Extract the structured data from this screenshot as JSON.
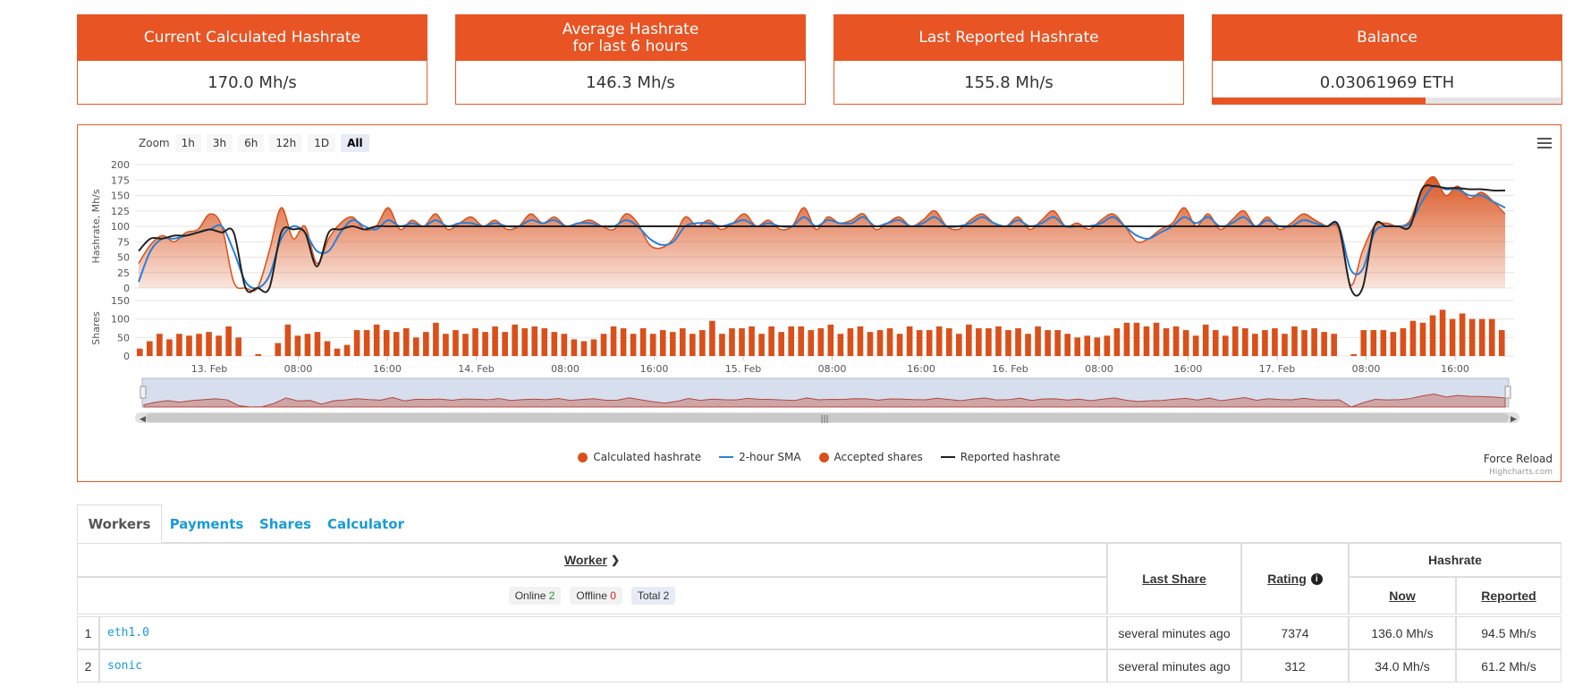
{
  "cards": [
    {
      "title": "Current Calculated Hashrate",
      "value": "170.0 Mh/s"
    },
    {
      "title": "Average Hashrate\nfor last 6 hours",
      "title_line1": "Average Hashrate",
      "title_line2": "for last 6 hours",
      "value": "146.3 Mh/s"
    },
    {
      "title": "Last Reported Hashrate",
      "value": "155.8 Mh/s"
    },
    {
      "title": "Balance",
      "value": "0.03061969 ETH",
      "progress_fraction": 0.61
    }
  ],
  "chart": {
    "zoom_label": "Zoom",
    "zoom_buttons": [
      "1h",
      "3h",
      "6h",
      "12h",
      "1D",
      "All"
    ],
    "zoom_active": "All",
    "legend": [
      "Calculated hashrate",
      "2-hour SMA",
      "Accepted shares",
      "Reported hashrate"
    ],
    "force_reload": "Force Reload",
    "credit": "Highcharts.com",
    "colors": {
      "calculated": "#d9501a",
      "sma": "#2b7fd6",
      "shares": "#d9501a",
      "reported": "#222222"
    }
  },
  "chart_data": {
    "type": "line",
    "panes": [
      {
        "ylabel": "Hashrate, Mh/s",
        "ylim": [
          0,
          200
        ],
        "yticks": [
          0,
          25,
          50,
          75,
          100,
          125,
          150,
          175,
          200
        ]
      },
      {
        "ylabel": "Shares",
        "ylim": [
          0,
          150
        ],
        "yticks": [
          0,
          50,
          100,
          150
        ]
      }
    ],
    "x_tick_labels": [
      "13. Feb",
      "08:00",
      "16:00",
      "14. Feb",
      "08:00",
      "16:00",
      "15. Feb",
      "08:00",
      "16:00",
      "16. Feb",
      "08:00",
      "16:00",
      "17. Feb",
      "08:00",
      "16:00"
    ],
    "series": [
      {
        "name": "Calculated hashrate",
        "type": "area",
        "values": [
          40,
          70,
          85,
          75,
          90,
          95,
          120,
          100,
          10,
          0,
          0,
          60,
          130,
          80,
          100,
          40,
          80,
          105,
          115,
          95,
          100,
          130,
          95,
          110,
          100,
          120,
          95,
          105,
          115,
          100,
          110,
          95,
          100,
          120,
          105,
          115,
          100,
          105,
          110,
          100,
          95,
          120,
          105,
          70,
          65,
          80,
          115,
          100,
          110,
          95,
          105,
          120,
          100,
          110,
          95,
          100,
          130,
          95,
          115,
          105,
          110,
          120,
          95,
          105,
          115,
          100,
          110,
          125,
          100,
          95,
          110,
          120,
          105,
          100,
          115,
          95,
          110,
          125,
          100,
          105,
          95,
          110,
          120,
          100,
          75,
          80,
          95,
          105,
          130,
          100,
          120,
          95,
          110,
          125,
          100,
          115,
          95,
          105,
          120,
          110,
          100,
          95,
          5,
          60,
          100,
          105,
          100,
          110,
          160,
          180,
          150,
          165,
          145,
          155,
          140,
          120
        ]
      },
      {
        "name": "2-hour SMA",
        "type": "line",
        "values": [
          10,
          60,
          80,
          80,
          85,
          90,
          95,
          100,
          60,
          10,
          0,
          20,
          80,
          100,
          90,
          60,
          60,
          90,
          110,
          100,
          95,
          110,
          100,
          105,
          100,
          110,
          100,
          105,
          105,
          100,
          105,
          100,
          100,
          110,
          105,
          110,
          100,
          105,
          105,
          100,
          100,
          110,
          100,
          80,
          70,
          75,
          100,
          105,
          105,
          100,
          105,
          110,
          100,
          105,
          100,
          100,
          115,
          100,
          110,
          105,
          105,
          115,
          100,
          105,
          110,
          100,
          105,
          115,
          100,
          100,
          105,
          115,
          105,
          100,
          110,
          100,
          105,
          115,
          100,
          100,
          100,
          105,
          115,
          100,
          85,
          80,
          90,
          100,
          115,
          105,
          115,
          100,
          105,
          115,
          100,
          110,
          100,
          100,
          110,
          105,
          100,
          100,
          30,
          30,
          90,
          100,
          100,
          105,
          140,
          165,
          160,
          160,
          150,
          150,
          140,
          130
        ]
      },
      {
        "name": "Reported hashrate",
        "type": "line",
        "values": [
          60,
          80,
          80,
          85,
          85,
          90,
          95,
          90,
          90,
          0,
          0,
          0,
          90,
          95,
          90,
          35,
          90,
          95,
          100,
          95,
          100,
          100,
          100,
          100,
          100,
          100,
          100,
          100,
          100,
          100,
          100,
          100,
          100,
          100,
          100,
          100,
          100,
          100,
          100,
          100,
          100,
          100,
          100,
          100,
          100,
          100,
          100,
          100,
          100,
          100,
          100,
          100,
          100,
          100,
          100,
          100,
          100,
          100,
          100,
          100,
          100,
          100,
          100,
          100,
          100,
          100,
          100,
          100,
          100,
          100,
          100,
          100,
          100,
          100,
          100,
          100,
          100,
          100,
          100,
          100,
          100,
          100,
          100,
          100,
          100,
          100,
          100,
          100,
          100,
          100,
          100,
          100,
          100,
          100,
          100,
          100,
          100,
          100,
          100,
          100,
          100,
          100,
          0,
          0,
          100,
          100,
          100,
          100,
          160,
          165,
          162,
          162,
          160,
          160,
          158,
          158
        ]
      },
      {
        "name": "Accepted shares",
        "type": "bar",
        "values": [
          20,
          40,
          60,
          45,
          60,
          55,
          60,
          65,
          55,
          80,
          50,
          0,
          5,
          0,
          35,
          85,
          55,
          60,
          65,
          40,
          20,
          30,
          70,
          70,
          85,
          70,
          65,
          75,
          50,
          65,
          90,
          60,
          70,
          60,
          75,
          65,
          80,
          65,
          85,
          75,
          80,
          75,
          65,
          60,
          45,
          40,
          45,
          60,
          80,
          75,
          60,
          75,
          60,
          70,
          65,
          75,
          60,
          70,
          95,
          60,
          75,
          75,
          80,
          60,
          80,
          65,
          80,
          80,
          70,
          75,
          85,
          60,
          75,
          80,
          65,
          70,
          75,
          60,
          80,
          70,
          70,
          80,
          75,
          60,
          85,
          75,
          75,
          80,
          70,
          75,
          60,
          80,
          70,
          70,
          60,
          50,
          55,
          50,
          55,
          75,
          90,
          90,
          80,
          90,
          75,
          80,
          70,
          55,
          85,
          70,
          55,
          80,
          75,
          60,
          70,
          75,
          60,
          80,
          70,
          75,
          65,
          60,
          0,
          5,
          70,
          70,
          70,
          65,
          75,
          95,
          90,
          110,
          125,
          100,
          115,
          100,
          100,
          100,
          70
        ]
      }
    ]
  },
  "tabs": [
    {
      "label": "Workers",
      "active": true
    },
    {
      "label": "Payments",
      "active": false
    },
    {
      "label": "Shares",
      "active": false
    },
    {
      "label": "Calculator",
      "active": false
    }
  ],
  "workers_table": {
    "headers": {
      "worker": "Worker",
      "last_share": "Last Share",
      "rating": "Rating",
      "hashrate": "Hashrate",
      "now": "Now",
      "reported": "Reported"
    },
    "filters": {
      "online_label": "Online",
      "online_count": "2",
      "offline_label": "Offline",
      "offline_count": "0",
      "total_label": "Total",
      "total_count": "2"
    },
    "rows": [
      {
        "index": "1",
        "name": "eth1.0",
        "last_share": "several minutes ago",
        "rating": "7374",
        "now": "136.0 Mh/s",
        "reported": "94.5 Mh/s"
      },
      {
        "index": "2",
        "name": "sonic",
        "last_share": "several minutes ago",
        "rating": "312",
        "now": "34.0 Mh/s",
        "reported": "61.2 Mh/s"
      }
    ]
  }
}
